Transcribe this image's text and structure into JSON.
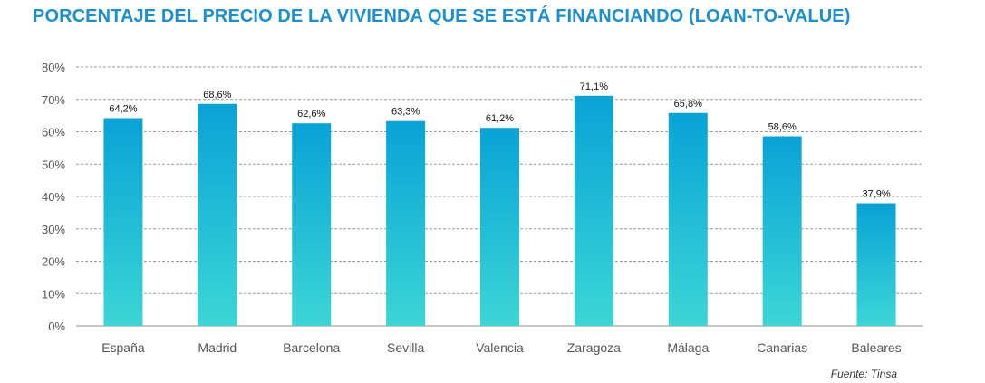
{
  "chart_data": {
    "type": "bar",
    "title": "PORCENTAJE DEL PRECIO DE LA VIVIENDA QUE SE ESTÁ FINANCIANDO (LOAN-TO-VALUE)",
    "categories": [
      "España",
      "Madrid",
      "Barcelona",
      "Sevilla",
      "Valencia",
      "Zaragoza",
      "Málaga",
      "Canarias",
      "Baleares"
    ],
    "values": [
      64.2,
      68.6,
      62.6,
      63.3,
      61.2,
      71.1,
      65.8,
      58.6,
      37.9
    ],
    "value_labels": [
      "64,2%",
      "68,6%",
      "62,6%",
      "63,3%",
      "61,2%",
      "71,1%",
      "65,8%",
      "58,6%",
      "37,9%"
    ],
    "ylim": [
      0,
      80
    ],
    "yticks": [
      0,
      10,
      20,
      30,
      40,
      50,
      60,
      70,
      80
    ],
    "ytick_labels": [
      "0%",
      "10%",
      "20%",
      "30%",
      "40%",
      "50%",
      "60%",
      "70%",
      "80%"
    ],
    "xlabel": "",
    "ylabel": "",
    "grid": true,
    "legend": "none",
    "source": "Fuente: Tinsa",
    "colors": {
      "title": "#1a8fd1",
      "bar_top": "#08a3d6",
      "bar_bottom": "#3cd6d6",
      "grid": "#9a9a9a",
      "axis_text": "#555555",
      "label_text": "#111111"
    }
  }
}
